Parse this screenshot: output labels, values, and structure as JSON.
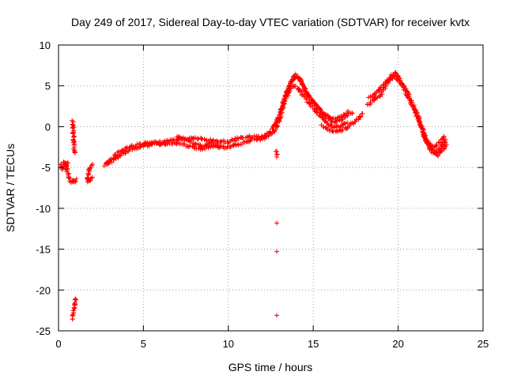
{
  "chart_data": {
    "type": "scatter",
    "title": "Day 249 of 2017, Sidereal Day-to-day VTEC variation (SDTVAR) for receiver kvtx",
    "xlabel": "GPS time / hours",
    "ylabel": "SDTVAR / TECUs",
    "xlim": [
      0,
      25
    ],
    "ylim": [
      -25,
      10
    ],
    "xticks": [
      0,
      5,
      10,
      15,
      20,
      25
    ],
    "yticks": [
      -25,
      -20,
      -15,
      -10,
      -5,
      0,
      5,
      10
    ],
    "xtick_labels": [
      "0",
      "5",
      "10",
      "15",
      "20",
      "25"
    ],
    "ytick_labels": [
      "-25",
      "-20",
      "-15",
      "-10",
      "-5",
      "0",
      "5",
      "10"
    ],
    "grid": true,
    "marker": "+",
    "series": [
      {
        "name": "SDTVAR",
        "color": "#ff0000",
        "tracks": [
          [
            [
              0.15,
              -4.6
            ],
            [
              0.25,
              -5.2
            ],
            [
              0.35,
              -4.3
            ],
            [
              0.45,
              -5.0
            ],
            [
              0.55,
              -4.4
            ]
          ],
          [
            [
              0.45,
              -4.5
            ],
            [
              0.52,
              -5.4
            ],
            [
              0.6,
              -6.2
            ],
            [
              0.7,
              -6.7
            ],
            [
              0.82,
              -6.6
            ],
            [
              0.95,
              -6.8
            ],
            [
              1.05,
              -6.4
            ]
          ],
          [
            [
              0.85,
              0.7
            ],
            [
              0.87,
              0.0
            ],
            [
              0.88,
              -0.7
            ],
            [
              0.9,
              -1.4
            ],
            [
              0.92,
              -2.1
            ],
            [
              0.94,
              -2.8
            ],
            [
              0.96,
              -3.2
            ]
          ],
          [
            [
              0.85,
              -23.6
            ],
            [
              0.88,
              -23.0
            ],
            [
              0.9,
              -22.4
            ],
            [
              0.93,
              -21.9
            ],
            [
              0.96,
              -21.4
            ],
            [
              1.0,
              -21.1
            ]
          ],
          [
            [
              1.7,
              -6.8
            ],
            [
              1.75,
              -6.0
            ],
            [
              1.8,
              -5.4
            ],
            [
              1.9,
              -4.9
            ],
            [
              2.0,
              -4.6
            ]
          ],
          [
            [
              1.7,
              -6.4
            ],
            [
              1.85,
              -6.7
            ],
            [
              2.0,
              -6.2
            ]
          ],
          [
            [
              2.7,
              -4.8
            ],
            [
              3.0,
              -4.2
            ],
            [
              3.5,
              -3.2
            ],
            [
              4.0,
              -2.6
            ],
            [
              4.5,
              -2.3
            ],
            [
              5.0,
              -2.1
            ],
            [
              6.0,
              -1.9
            ],
            [
              7.0,
              -1.6
            ],
            [
              8.0,
              -1.4
            ],
            [
              9.0,
              -1.7
            ],
            [
              10.0,
              -1.9
            ],
            [
              10.5,
              -1.5
            ],
            [
              11.0,
              -1.3
            ],
            [
              11.5,
              -1.2
            ],
            [
              12.0,
              -1.3
            ],
            [
              12.5,
              -0.5
            ],
            [
              12.8,
              0.3
            ],
            [
              13.1,
              2.0
            ],
            [
              13.4,
              4.0
            ],
            [
              13.7,
              5.5
            ],
            [
              13.95,
              6.3
            ],
            [
              14.3,
              5.5
            ],
            [
              14.7,
              3.8
            ],
            [
              15.2,
              2.5
            ],
            [
              15.7,
              1.4
            ],
            [
              16.2,
              0.9
            ],
            [
              16.7,
              1.2
            ],
            [
              17.0,
              1.8
            ],
            [
              17.3,
              1.6
            ]
          ],
          [
            [
              2.9,
              -4.6
            ],
            [
              3.5,
              -3.7
            ],
            [
              4.0,
              -3.0
            ],
            [
              4.5,
              -2.6
            ],
            [
              5.0,
              -2.3
            ],
            [
              6.0,
              -2.1
            ],
            [
              7.0,
              -2.0
            ],
            [
              7.5,
              -2.3
            ],
            [
              8.0,
              -2.6
            ],
            [
              8.5,
              -2.7
            ],
            [
              9.0,
              -2.4
            ],
            [
              9.5,
              -2.5
            ],
            [
              10.0,
              -2.6
            ],
            [
              10.5,
              -2.2
            ],
            [
              11.0,
              -1.9
            ],
            [
              11.5,
              -1.6
            ],
            [
              12.0,
              -1.5
            ],
            [
              12.5,
              -0.9
            ],
            [
              12.8,
              -0.3
            ],
            [
              13.1,
              1.5
            ],
            [
              13.4,
              3.4
            ],
            [
              13.7,
              4.8
            ],
            [
              14.0,
              4.9
            ],
            [
              14.3,
              4.2
            ],
            [
              14.7,
              3.0
            ],
            [
              15.2,
              1.8
            ],
            [
              15.7,
              0.6
            ],
            [
              16.2,
              -0.1
            ],
            [
              16.6,
              0.1
            ],
            [
              17.0,
              0.5
            ]
          ],
          [
            [
              7.0,
              -1.2
            ],
            [
              7.5,
              -1.6
            ],
            [
              8.0,
              -2.1
            ],
            [
              8.5,
              -2.4
            ],
            [
              9.0,
              -2.0
            ],
            [
              9.5,
              -2.3
            ]
          ],
          [
            [
              13.2,
              2.8
            ],
            [
              13.5,
              4.4
            ],
            [
              13.8,
              5.8
            ],
            [
              14.05,
              6.1
            ],
            [
              14.4,
              5.0
            ],
            [
              14.9,
              3.2
            ],
            [
              15.4,
              2.0
            ],
            [
              15.9,
              0.9
            ],
            [
              16.3,
              0.5
            ],
            [
              16.7,
              0.9
            ],
            [
              17.0,
              1.3
            ]
          ],
          [
            [
              15.5,
              0.2
            ],
            [
              16.0,
              -0.4
            ],
            [
              16.5,
              -0.6
            ],
            [
              16.9,
              -0.2
            ],
            [
              17.3,
              0.4
            ],
            [
              17.7,
              1.0
            ],
            [
              17.9,
              1.6
            ]
          ],
          [
            [
              18.2,
              2.6
            ],
            [
              18.5,
              3.2
            ],
            [
              19.0,
              4.0
            ],
            [
              19.4,
              5.4
            ],
            [
              19.6,
              6.3
            ],
            [
              19.85,
              6.6
            ],
            [
              20.1,
              5.8
            ],
            [
              20.5,
              4.4
            ],
            [
              20.9,
              2.6
            ],
            [
              21.3,
              0.6
            ],
            [
              21.6,
              -1.5
            ],
            [
              21.9,
              -2.6
            ],
            [
              22.2,
              -3.2
            ],
            [
              22.5,
              -2.6
            ],
            [
              22.8,
              -1.6
            ]
          ],
          [
            [
              18.3,
              3.5
            ],
            [
              18.7,
              4.2
            ],
            [
              19.1,
              5.0
            ],
            [
              19.5,
              5.9
            ],
            [
              19.8,
              6.1
            ],
            [
              20.2,
              5.2
            ],
            [
              20.6,
              3.6
            ],
            [
              21.0,
              1.9
            ],
            [
              21.4,
              -0.2
            ],
            [
              21.7,
              -2.1
            ],
            [
              22.0,
              -3.0
            ],
            [
              22.3,
              -3.5
            ],
            [
              22.6,
              -2.9
            ],
            [
              22.85,
              -2.2
            ]
          ],
          [
            [
              21.5,
              -1.0
            ],
            [
              21.8,
              -2.0
            ],
            [
              22.1,
              -2.5
            ],
            [
              22.4,
              -2.0
            ],
            [
              22.7,
              -1.2
            ]
          ],
          [
            [
              12.85,
              -3.0
            ],
            [
              12.85,
              -3.7
            ]
          ]
        ],
        "points": [
          [
            12.85,
            -11.8
          ],
          [
            12.85,
            -15.3
          ],
          [
            12.85,
            -23.1
          ]
        ]
      }
    ]
  }
}
